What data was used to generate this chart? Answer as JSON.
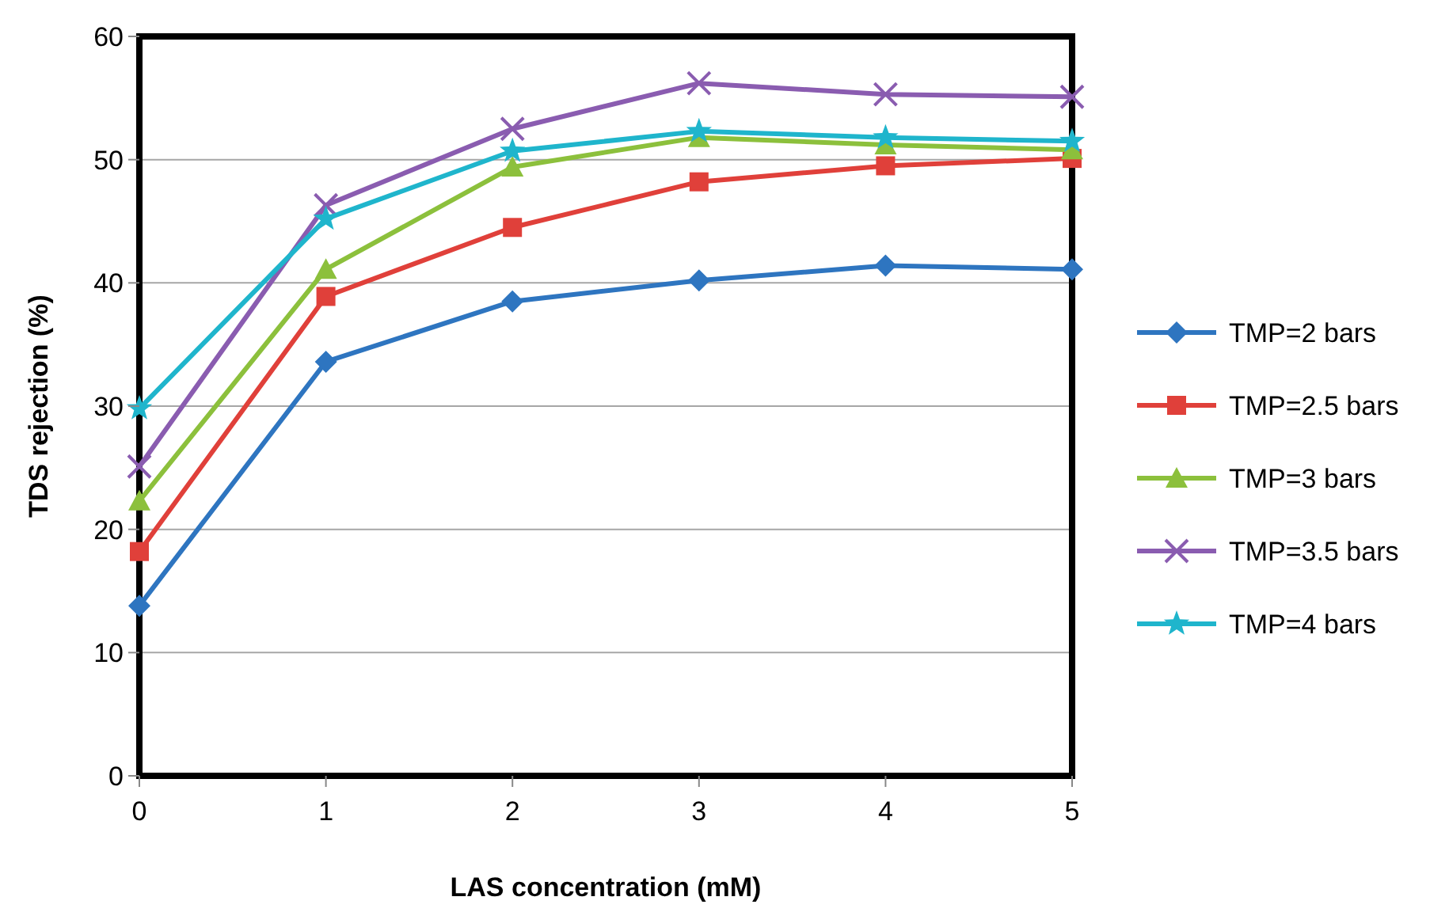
{
  "chart_data": {
    "type": "line",
    "xlabel": "LAS concentration (mM)",
    "ylabel": "TDS rejection (%)",
    "x": [
      0,
      1,
      2,
      3,
      4,
      5
    ],
    "xlim": [
      0,
      5
    ],
    "xticks": [
      0,
      1,
      2,
      3,
      4,
      5
    ],
    "ylim": [
      0,
      60
    ],
    "yticks": [
      0,
      10,
      20,
      30,
      40,
      50,
      60
    ],
    "grid": "y",
    "legend": "right",
    "line_style": "solid",
    "series": [
      {
        "name": "TMP=2 bars",
        "color": "#2e75c0",
        "marker": "diamond",
        "values": [
          13.8,
          33.6,
          38.5,
          40.2,
          41.4,
          41.1
        ]
      },
      {
        "name": "TMP=2.5 bars",
        "color": "#e0403a",
        "marker": "square",
        "values": [
          18.2,
          38.9,
          44.5,
          48.2,
          49.5,
          50.1
        ]
      },
      {
        "name": "TMP=3 bars",
        "color": "#8cc03c",
        "marker": "triangle",
        "values": [
          22.3,
          41.1,
          49.4,
          51.8,
          51.2,
          50.8
        ]
      },
      {
        "name": "TMP=3.5 bars",
        "color": "#8a5cb0",
        "marker": "cross",
        "values": [
          25.1,
          46.3,
          52.5,
          56.2,
          55.3,
          55.1
        ]
      },
      {
        "name": "TMP=4 bars",
        "color": "#1fb5cc",
        "marker": "star",
        "values": [
          29.8,
          45.2,
          50.7,
          52.3,
          51.8,
          51.5
        ]
      }
    ]
  }
}
